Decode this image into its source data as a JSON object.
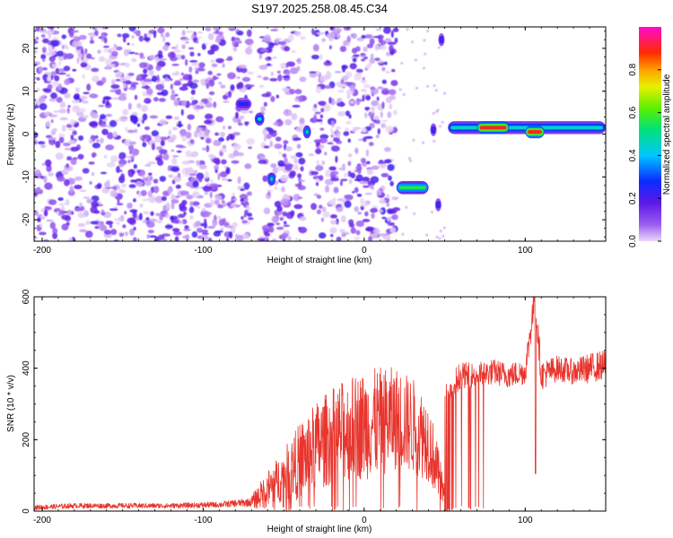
{
  "title": "S197.2025.258.08.45.C34",
  "colors": {
    "snr_line": "#e8352e",
    "background_speckle": "#7a2fe0"
  },
  "chart_data": [
    {
      "type": "heatmap",
      "title": "S197.2025.258.08.45.C34",
      "xlabel": "Height of straight line (km)",
      "ylabel": "Frequency (Hz)",
      "xlim": [
        -205,
        150
      ],
      "ylim": [
        -25,
        25
      ],
      "x_ticks": [
        -200,
        -100,
        0,
        100
      ],
      "x_tick_labels": [
        "-200",
        "-100",
        "0",
        "100"
      ],
      "y_ticks": [
        -20,
        -10,
        0,
        10,
        20
      ],
      "y_tick_labels": [
        "-20",
        "-10",
        "0",
        "10",
        "20"
      ],
      "colorscale": "rainbow (purple → blue → cyan → green → yellow → red → magenta)",
      "colorbar": {
        "label": "Normalized spectral amplitude",
        "ticks": [
          0.0,
          0.2,
          0.4,
          0.6,
          0.8
        ],
        "tick_labels": [
          "0.0",
          "0.2",
          "0.4",
          "0.6",
          "0.8"
        ],
        "range": [
          0,
          1
        ]
      },
      "features": [
        {
          "x": [
            -80,
            -70
          ],
          "freq": 7,
          "amp": 0.25
        },
        {
          "x": [
            -68,
            -62
          ],
          "freq": 3.5,
          "amp": 0.45
        },
        {
          "x": [
            -60,
            -55
          ],
          "freq": -10.5,
          "amp": 0.5
        },
        {
          "x": [
            -38,
            -33
          ],
          "freq": 0.5,
          "amp": 0.5
        },
        {
          "x": [
            20,
            40
          ],
          "freq": -12.5,
          "amp": 0.55
        },
        {
          "x": [
            41,
            45
          ],
          "freq": 1,
          "amp": 0.3
        },
        {
          "x": [
            44,
            48
          ],
          "freq": -16.5,
          "amp": 0.3
        },
        {
          "x": [
            46,
            50
          ],
          "freq": 22,
          "amp": 0.3
        },
        {
          "x": [
            52,
            150
          ],
          "freq": 1.5,
          "amp": 0.45
        },
        {
          "x": [
            70,
            90
          ],
          "freq": 1.5,
          "amp": 0.9
        },
        {
          "x": [
            100,
            112
          ],
          "freq": 0.5,
          "amp": 0.9
        }
      ]
    },
    {
      "type": "line",
      "xlabel": "Height of straight line (km)",
      "ylabel": "SNR (10 * v/v)",
      "xlim": [
        -205,
        150
      ],
      "ylim": [
        0,
        600
      ],
      "x_ticks": [
        -200,
        -100,
        0,
        100
      ],
      "x_tick_labels": [
        "-200",
        "-100",
        "0",
        "100"
      ],
      "y_ticks": [
        0,
        200,
        400,
        600
      ],
      "y_tick_labels": [
        "0",
        "200",
        "400",
        "600"
      ],
      "series": [
        {
          "x": [
            -205,
            -180,
            -150,
            -120,
            -90,
            -70,
            -60,
            -50,
            -40,
            -30,
            -20,
            -10,
            0,
            10,
            20,
            30,
            40,
            45,
            50,
            52,
            55,
            60,
            70,
            80,
            90,
            100,
            106,
            110,
            120,
            130,
            140,
            150
          ],
          "y": [
            10,
            15,
            15,
            15,
            18,
            25,
            60,
            100,
            140,
            180,
            210,
            230,
            240,
            250,
            260,
            240,
            200,
            120,
            40,
            5,
            360,
            380,
            380,
            390,
            380,
            390,
            600,
            380,
            400,
            390,
            400,
            410
          ],
          "noise": [
            12,
            12,
            12,
            12,
            14,
            20,
            60,
            80,
            120,
            140,
            150,
            160,
            170,
            170,
            160,
            150,
            130,
            90,
            40,
            5,
            70,
            60,
            60,
            60,
            60,
            60,
            90,
            70,
            60,
            60,
            70,
            70
          ]
        }
      ]
    }
  ]
}
